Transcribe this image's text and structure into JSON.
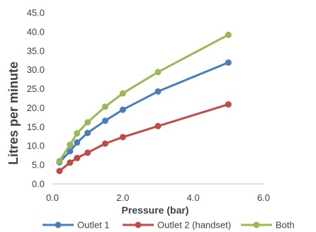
{
  "chart_data": {
    "type": "line",
    "xlabel": "Pressure (bar)",
    "ylabel": "Litres per minute",
    "xlim": [
      0,
      6
    ],
    "ylim": [
      0,
      45
    ],
    "x_ticks": [
      "0.0",
      "2.0",
      "4.0",
      "6.0"
    ],
    "y_ticks": [
      "0.0",
      "5.0",
      "10.0",
      "15.0",
      "20.0",
      "25.0",
      "30.0",
      "35.0",
      "40.0",
      "45.0"
    ],
    "grid": false,
    "legend_position": "bottom",
    "series": [
      {
        "name": "Outlet 1",
        "color": "#4a7ebb",
        "points": [
          {
            "x": 0.2,
            "y": 5.7
          },
          {
            "x": 0.5,
            "y": 8.6
          },
          {
            "x": 0.7,
            "y": 10.9
          },
          {
            "x": 1.0,
            "y": 13.4
          },
          {
            "x": 1.5,
            "y": 16.6
          },
          {
            "x": 2.0,
            "y": 19.5
          },
          {
            "x": 3.0,
            "y": 24.3
          },
          {
            "x": 5.0,
            "y": 31.9
          }
        ]
      },
      {
        "name": "Outlet 2 (handset)",
        "color": "#be4b48",
        "points": [
          {
            "x": 0.2,
            "y": 3.4
          },
          {
            "x": 0.5,
            "y": 5.6
          },
          {
            "x": 0.7,
            "y": 6.8
          },
          {
            "x": 1.0,
            "y": 8.2
          },
          {
            "x": 1.5,
            "y": 10.6
          },
          {
            "x": 2.0,
            "y": 12.3
          },
          {
            "x": 3.0,
            "y": 15.2
          },
          {
            "x": 5.0,
            "y": 20.9
          }
        ]
      },
      {
        "name": "Both",
        "color": "#98b954",
        "points": [
          {
            "x": 0.2,
            "y": 6.0
          },
          {
            "x": 0.5,
            "y": 10.3
          },
          {
            "x": 0.7,
            "y": 13.3
          },
          {
            "x": 1.0,
            "y": 16.2
          },
          {
            "x": 1.5,
            "y": 20.3
          },
          {
            "x": 2.0,
            "y": 23.8
          },
          {
            "x": 3.0,
            "y": 29.4
          },
          {
            "x": 5.0,
            "y": 39.2
          }
        ]
      }
    ]
  }
}
